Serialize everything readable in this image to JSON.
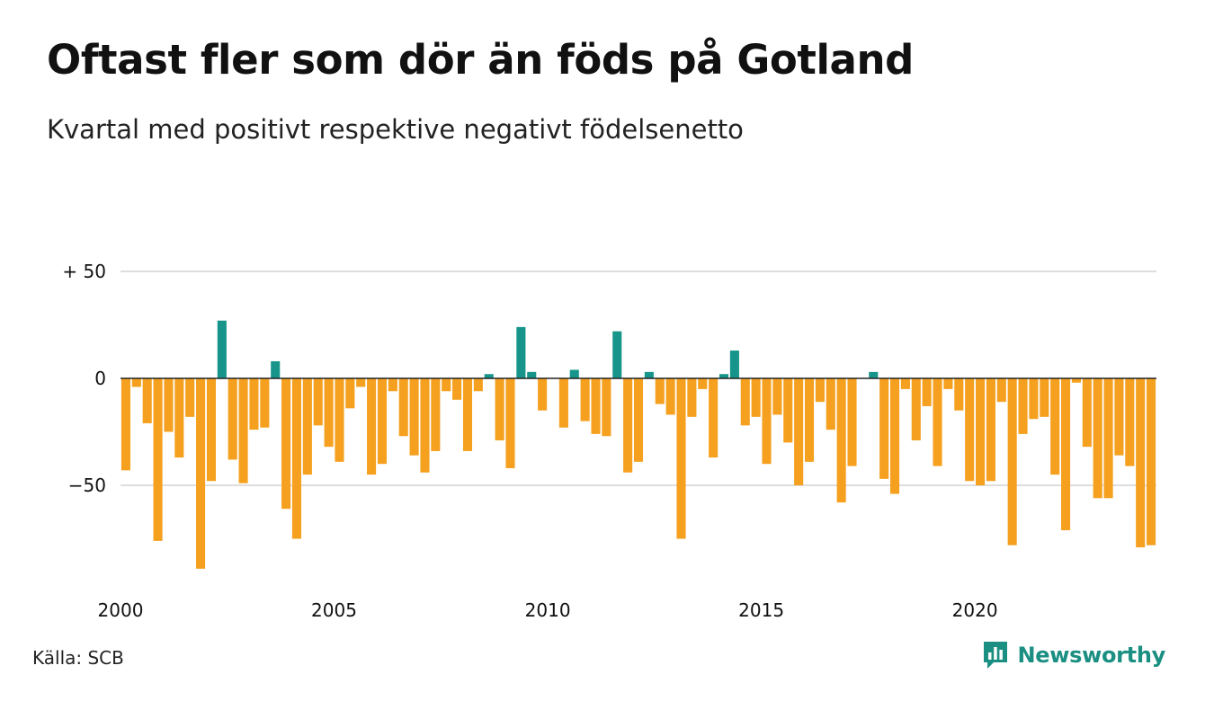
{
  "title": "Oftast fler som dör än föds på Gotland",
  "subtitle": "Kvartal med positivt respektive negativt födelsenetto",
  "source": "Källa: SCB",
  "brand": {
    "name": "Newsworthy",
    "icon": "newsworthy-logo-icon"
  },
  "colors": {
    "positive": "#17958a",
    "negative": "#f5a01f",
    "grid": "#dddddd",
    "zero_line": "#222222"
  },
  "chart_data": {
    "type": "bar",
    "title": "Oftast fler som dör än föds på Gotland",
    "subtitle": "Kvartal med positivt respektive negativt födelsenetto",
    "xlabel": "",
    "ylabel": "",
    "ylim": [
      -92,
      50
    ],
    "yticks": [
      {
        "value": 50,
        "label": "+ 50"
      },
      {
        "value": 0,
        "label": "0"
      },
      {
        "value": -50,
        "label": "−50"
      }
    ],
    "xticks": [
      "2000",
      "2005",
      "2010",
      "2015",
      "2020"
    ],
    "start_year": 2000,
    "values": [
      -43,
      -4,
      -21,
      -76,
      -25,
      -37,
      -18,
      -89,
      -48,
      27,
      -38,
      -49,
      -24,
      -23,
      8,
      -61,
      -75,
      -45,
      -22,
      -32,
      -39,
      -14,
      -4,
      -45,
      -40,
      -6,
      -27,
      -36,
      -44,
      -34,
      -6,
      -10,
      -34,
      -6,
      2,
      -29,
      -42,
      24,
      3,
      -15,
      0,
      -23,
      4,
      -20,
      -26,
      -27,
      22,
      -44,
      -39,
      3,
      -12,
      -17,
      -75,
      -18,
      -5,
      -37,
      2,
      13,
      -22,
      -18,
      -40,
      -17,
      -30,
      -50,
      -39,
      -11,
      -24,
      -58,
      -41,
      0,
      3,
      -47,
      -54,
      -5,
      -29,
      -13,
      -41,
      -5,
      -15,
      -48,
      -50,
      -48,
      -11,
      -78,
      -26,
      -19,
      -18,
      -45,
      -71,
      -2,
      -32,
      -56,
      -56,
      -36,
      -41,
      -79,
      -78
    ],
    "grid": true,
    "legend": "none"
  }
}
